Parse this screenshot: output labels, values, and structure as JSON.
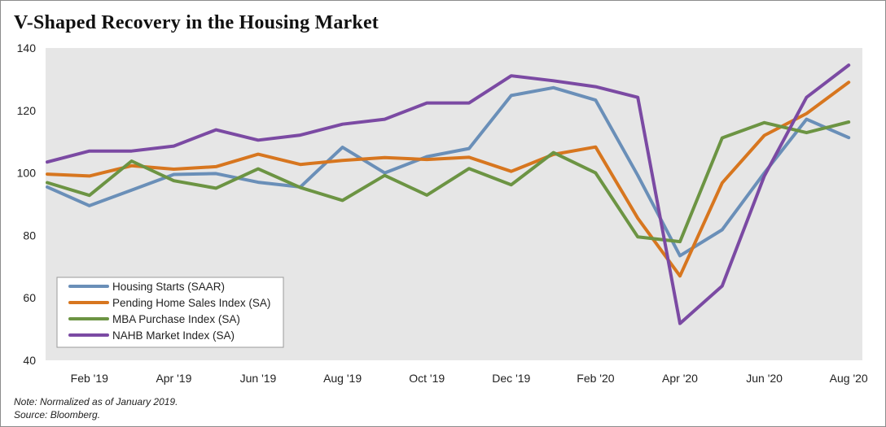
{
  "chart_data": {
    "type": "line",
    "title": "V-Shaped Recovery in the Housing Market",
    "x": [
      "Jan '19",
      "Feb '19",
      "Mar '19",
      "Apr '19",
      "May '19",
      "Jun '19",
      "Jul '19",
      "Aug '19",
      "Sep '19",
      "Oct '19",
      "Nov '19",
      "Dec '19",
      "Jan '20",
      "Feb '20",
      "Mar '20",
      "Apr '20",
      "May '20",
      "Jun '20",
      "Jul '20",
      "Aug '20"
    ],
    "x_tick_labels": [
      "Feb '19",
      "Apr '19",
      "Jun '19",
      "Aug '19",
      "Oct '19",
      "Dec '19",
      "Feb '20",
      "Apr '20",
      "Jun '20",
      "Aug '20"
    ],
    "ylim": [
      40,
      140
    ],
    "y_ticks": [
      40,
      60,
      80,
      100,
      120,
      140
    ],
    "grid": false,
    "legend_position": "bottom-left",
    "series": [
      {
        "name": "Housing Starts (SAAR)",
        "color": "#6a8fb8",
        "values": [
          95.5,
          89.5,
          94.5,
          99.5,
          99.8,
          97,
          95.5,
          108.2,
          100,
          105.2,
          107.8,
          124.8,
          127.3,
          123.3,
          99.2,
          73.5,
          81.8,
          100,
          117.2,
          111.3
        ]
      },
      {
        "name": "Pending Home Sales Index (SA)",
        "color": "#d7761f",
        "values": [
          99.6,
          99,
          102.3,
          101.2,
          102,
          106,
          102.7,
          104,
          104.9,
          104.3,
          105,
          100.5,
          105.9,
          108.3,
          85.5,
          67,
          96.8,
          112,
          119,
          129
        ]
      },
      {
        "name": "MBA Purchase Index (SA)",
        "color": "#6c9443",
        "values": [
          96.9,
          92.8,
          103.8,
          97.5,
          95.1,
          101.3,
          95.3,
          91.2,
          99.2,
          92.9,
          101.4,
          96.2,
          106.5,
          100,
          79.5,
          78,
          111.2,
          116.1,
          112.9,
          116.3
        ]
      },
      {
        "name": "NAHB Market Index (SA)",
        "color": "#7b4aa3",
        "values": [
          103.5,
          107,
          107,
          108.6,
          113.8,
          110.5,
          112.1,
          115.6,
          117.2,
          122.4,
          122.4,
          131.1,
          129.5,
          127.6,
          124.2,
          51.8,
          63.8,
          99,
          124.2,
          134.5
        ]
      }
    ]
  },
  "notes": {
    "line1": "Note: Normalized as of January 2019.",
    "line2": "Source: Bloomberg."
  }
}
